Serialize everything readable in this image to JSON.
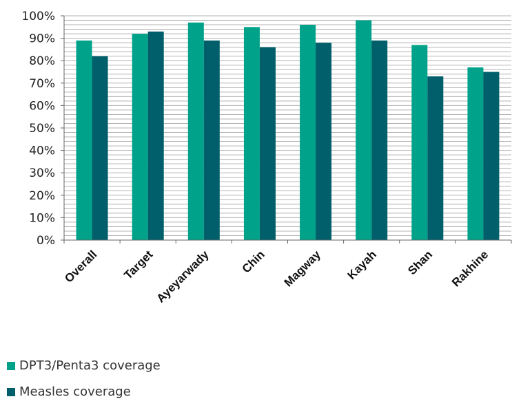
{
  "chart_data": {
    "type": "bar",
    "categories": [
      "Overall",
      "Target",
      "Ayeyarwady",
      "Chin",
      "Magway",
      "Kayah",
      "Shan",
      "Rakhine"
    ],
    "series": [
      {
        "name": "DPT3/Penta3 coverage",
        "color": "#00a38a",
        "values": [
          89,
          92,
          97,
          95,
          96,
          98,
          87,
          77
        ]
      },
      {
        "name": "Measles coverage",
        "color": "#005f6a",
        "values": [
          82,
          93,
          89,
          86,
          88,
          89,
          73,
          75
        ]
      }
    ],
    "yticks": [
      "0%",
      "10%",
      "20%",
      "30%",
      "40%",
      "50%",
      "60%",
      "70%",
      "80%",
      "90%",
      "100%"
    ],
    "ylim": [
      0,
      100
    ],
    "grid": true,
    "legend_position": "bottom-left",
    "title": "",
    "xlabel": "",
    "ylabel": ""
  }
}
